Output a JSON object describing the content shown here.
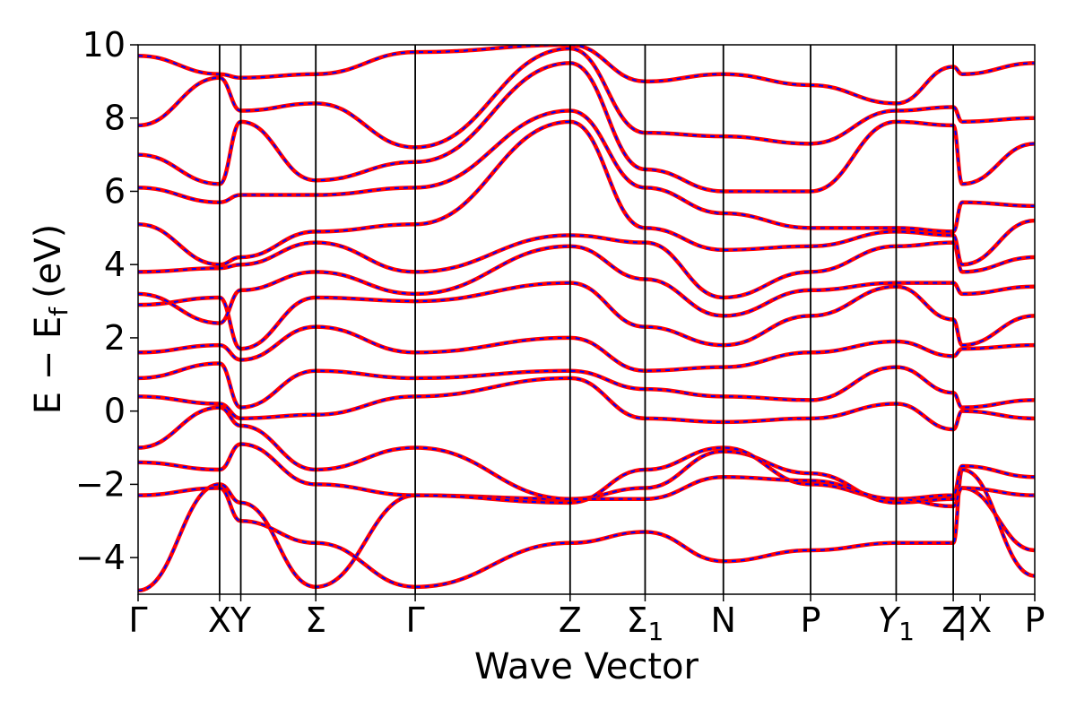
{
  "chart_data": {
    "type": "line",
    "title": "",
    "xlabel": "Wave Vector",
    "ylabel": "E − E_f (eV)",
    "ylabel_parts": {
      "main": "E − E",
      "sub": "f",
      "unit": "(eV)"
    },
    "ylim": [
      -5,
      10
    ],
    "yticks": [
      -4,
      -2,
      0,
      2,
      4,
      6,
      8,
      10
    ],
    "ytick_labels": [
      "−4",
      "−2",
      "0",
      "2",
      "4",
      "6",
      "8",
      "10"
    ],
    "xlim": [
      0,
      11
    ],
    "grid": false,
    "legend": "none",
    "kpoints": [
      {
        "label": "Γ",
        "x": 0.0
      },
      {
        "label": "X",
        "x": 1.0
      },
      {
        "label": "Y",
        "x": 1.26
      },
      {
        "label": "Σ",
        "x": 2.18
      },
      {
        "label": "Γ",
        "x": 3.4
      },
      {
        "label": "Z",
        "x": 5.3
      },
      {
        "label": "Σ",
        "sub": "1",
        "x": 6.22
      },
      {
        "label": "N",
        "x": 7.18
      },
      {
        "label": "P",
        "x": 8.25
      },
      {
        "label": "Y",
        "sub": "1",
        "italic": true,
        "x": 9.3
      },
      {
        "label": "Z",
        "x": 10.0
      },
      {
        "label": "|",
        "x": 10.11
      },
      {
        "label": "X",
        "x": 10.33
      },
      {
        "label": "P",
        "x": 11.0
      }
    ],
    "segment_boundaries": [
      1.0,
      1.26,
      2.18,
      3.4,
      5.3,
      6.22,
      7.18,
      8.25,
      9.3,
      10.0
    ],
    "series_styles": [
      {
        "color": "#ff0000",
        "style": "solid"
      },
      {
        "color": "#0000ff",
        "style": "dashed"
      }
    ],
    "bands": [
      {
        "x": [
          0,
          1.0,
          1.26,
          2.18,
          3.4,
          5.3,
          6.22,
          7.18,
          8.25,
          9.3,
          10.0,
          10.11,
          11.0
        ],
        "y": [
          -4.9,
          -2.0,
          -2.5,
          -4.8,
          -2.3,
          -2.4,
          -2.1,
          -1.1,
          -1.7,
          -2.5,
          -2.4,
          -2.1,
          -3.8
        ]
      },
      {
        "x": [
          0,
          1.0,
          1.26,
          2.18,
          3.4,
          5.3,
          6.22,
          7.18,
          8.25,
          9.3,
          10.0,
          10.11,
          11.0
        ],
        "y": [
          -2.3,
          -2.1,
          -3.0,
          -3.6,
          -4.8,
          -3.6,
          -3.3,
          -4.1,
          -3.8,
          -3.6,
          -3.6,
          -1.6,
          -4.5
        ]
      },
      {
        "x": [
          0,
          1.0,
          1.26,
          2.18,
          3.4,
          5.3,
          6.22,
          7.18,
          8.25,
          9.3,
          10.0,
          10.11,
          11.0
        ],
        "y": [
          -1.4,
          -1.6,
          -0.9,
          -2.0,
          -2.3,
          -2.5,
          -1.6,
          -1.0,
          -2.0,
          -2.4,
          -2.3,
          -1.5,
          -1.8
        ]
      },
      {
        "x": [
          0,
          1.0,
          1.26,
          2.18,
          3.4,
          5.3,
          6.22,
          7.18,
          8.25,
          9.3,
          10.0,
          10.11,
          11.0
        ],
        "y": [
          -1.0,
          0.1,
          -0.4,
          -1.6,
          -1.0,
          -2.4,
          -2.4,
          -1.8,
          -1.9,
          -2.4,
          -2.6,
          -2.1,
          -2.3
        ]
      },
      {
        "x": [
          0,
          1.0,
          1.26,
          2.18,
          3.4,
          5.3,
          6.22,
          7.18,
          8.25,
          9.3,
          10.0,
          10.11,
          11.0
        ],
        "y": [
          0.4,
          0.2,
          -0.2,
          -0.1,
          0.4,
          0.9,
          -0.2,
          -0.3,
          -0.2,
          0.2,
          -0.5,
          0.0,
          -0.2
        ]
      },
      {
        "x": [
          0,
          1.0,
          1.26,
          2.18,
          3.4,
          5.3,
          6.22,
          7.18,
          8.25,
          9.3,
          10.0,
          10.11,
          11.0
        ],
        "y": [
          0.9,
          1.3,
          0.1,
          1.1,
          0.9,
          1.1,
          0.6,
          0.4,
          0.3,
          1.2,
          0.5,
          0.1,
          0.3
        ]
      },
      {
        "x": [
          0,
          1.0,
          1.26,
          2.18,
          3.4,
          5.3,
          6.22,
          7.18,
          8.25,
          9.3,
          10.0,
          10.11,
          11.0
        ],
        "y": [
          1.6,
          1.8,
          1.4,
          2.3,
          1.6,
          2.0,
          1.1,
          1.2,
          1.6,
          1.9,
          1.5,
          1.7,
          1.8
        ]
      },
      {
        "x": [
          0,
          1.0,
          1.26,
          2.18,
          3.4,
          5.3,
          6.22,
          7.18,
          8.25,
          9.3,
          10.0,
          10.11,
          11.0
        ],
        "y": [
          2.9,
          3.1,
          1.7,
          3.1,
          3.0,
          3.5,
          2.3,
          1.8,
          2.6,
          3.4,
          2.5,
          1.8,
          2.6
        ]
      },
      {
        "x": [
          0,
          1.0,
          1.26,
          2.18,
          3.4,
          5.3,
          6.22,
          7.18,
          8.25,
          9.3,
          10.0,
          10.11,
          11.0
        ],
        "y": [
          3.2,
          2.4,
          3.3,
          3.8,
          3.2,
          4.5,
          3.6,
          2.6,
          3.3,
          3.5,
          3.5,
          3.2,
          3.4
        ]
      },
      {
        "x": [
          0,
          1.0,
          1.26,
          2.18,
          3.4,
          5.3,
          6.22,
          7.18,
          8.25,
          9.3,
          10.0,
          10.11,
          11.0
        ],
        "y": [
          3.8,
          3.9,
          4.0,
          4.6,
          3.8,
          4.8,
          4.6,
          3.1,
          3.8,
          4.5,
          4.6,
          3.8,
          4.2
        ]
      },
      {
        "x": [
          0,
          1.0,
          1.26,
          2.18,
          3.4,
          5.3,
          6.22,
          7.18,
          8.25,
          9.3,
          10.0,
          10.11,
          11.0
        ],
        "y": [
          5.1,
          4.0,
          4.2,
          4.9,
          5.1,
          7.9,
          5.0,
          4.4,
          4.5,
          4.9,
          4.8,
          4.0,
          5.2
        ]
      },
      {
        "x": [
          0,
          1.0,
          1.26,
          2.18,
          3.4,
          5.3,
          6.22,
          7.18,
          8.25,
          9.3,
          10.0,
          10.11,
          11.0
        ],
        "y": [
          6.1,
          5.7,
          5.9,
          5.9,
          6.1,
          8.2,
          6.1,
          5.4,
          5.0,
          5.0,
          4.9,
          5.7,
          5.6
        ]
      },
      {
        "x": [
          0,
          1.0,
          1.26,
          2.18,
          3.4,
          5.3,
          6.22,
          7.18,
          8.25,
          9.3,
          10.0,
          10.11,
          11.0
        ],
        "y": [
          7.0,
          6.2,
          7.9,
          6.3,
          6.8,
          9.5,
          6.6,
          6.0,
          6.0,
          7.9,
          7.8,
          6.2,
          7.3
        ]
      },
      {
        "x": [
          0,
          1.0,
          1.26,
          2.18,
          3.4,
          5.3,
          6.22,
          7.18,
          8.25,
          9.3,
          10.0,
          10.11,
          11.0
        ],
        "y": [
          7.8,
          9.1,
          8.2,
          8.4,
          7.2,
          9.9,
          7.6,
          7.5,
          7.3,
          8.2,
          8.3,
          7.9,
          8.0
        ]
      },
      {
        "x": [
          0,
          1.0,
          1.26,
          2.18,
          3.4,
          5.3,
          6.22,
          7.18,
          8.25,
          9.3,
          10.0,
          10.11,
          11.0
        ],
        "y": [
          9.7,
          9.2,
          9.1,
          9.2,
          9.8,
          10.0,
          9.0,
          9.2,
          8.9,
          8.4,
          9.4,
          9.2,
          9.5
        ]
      }
    ]
  }
}
